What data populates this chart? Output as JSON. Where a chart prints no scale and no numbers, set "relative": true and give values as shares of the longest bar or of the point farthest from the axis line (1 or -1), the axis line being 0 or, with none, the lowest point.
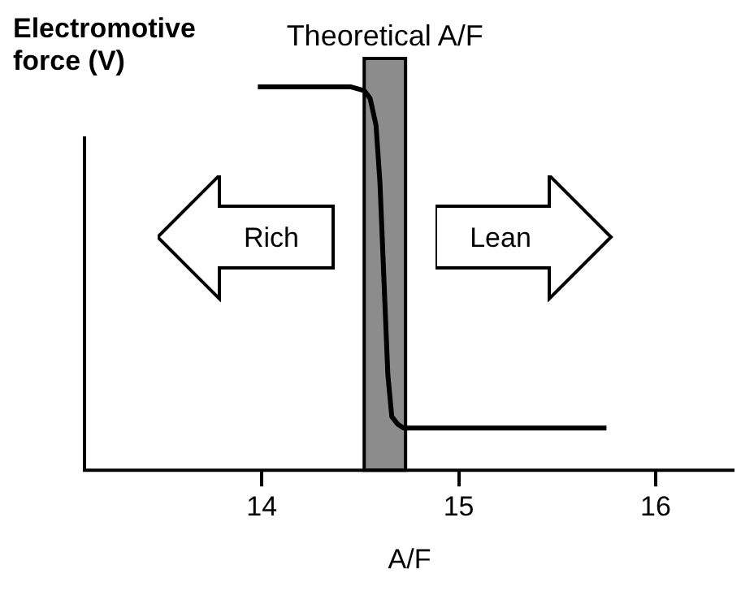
{
  "chart_data": {
    "type": "line",
    "relative": true,
    "xlabel": "A/F",
    "ylabel": "Electromotive force (V)",
    "xlim": [
      13.1,
      16.4
    ],
    "xticks": [
      14,
      15,
      16
    ],
    "grid": false,
    "legend": false,
    "marker": "none",
    "line_style": "solid",
    "series": [
      {
        "color": "#000000",
        "x": [
          13.98,
          14.45,
          14.52,
          14.55,
          14.58,
          14.6,
          14.62,
          14.64,
          14.66,
          14.69,
          14.72,
          15.75
        ],
        "values": [
          1,
          1,
          0.99,
          0.97,
          0.9,
          0.75,
          0.5,
          0.25,
          0.14,
          0.12,
          0.11,
          0.11
        ]
      }
    ],
    "bands": [
      {
        "axis": "x",
        "from": 14.52,
        "to": 14.73,
        "label": "Theoretical A/F",
        "color": "#000000"
      }
    ],
    "annotations": [
      "Rich",
      "Lean"
    ]
  }
}
